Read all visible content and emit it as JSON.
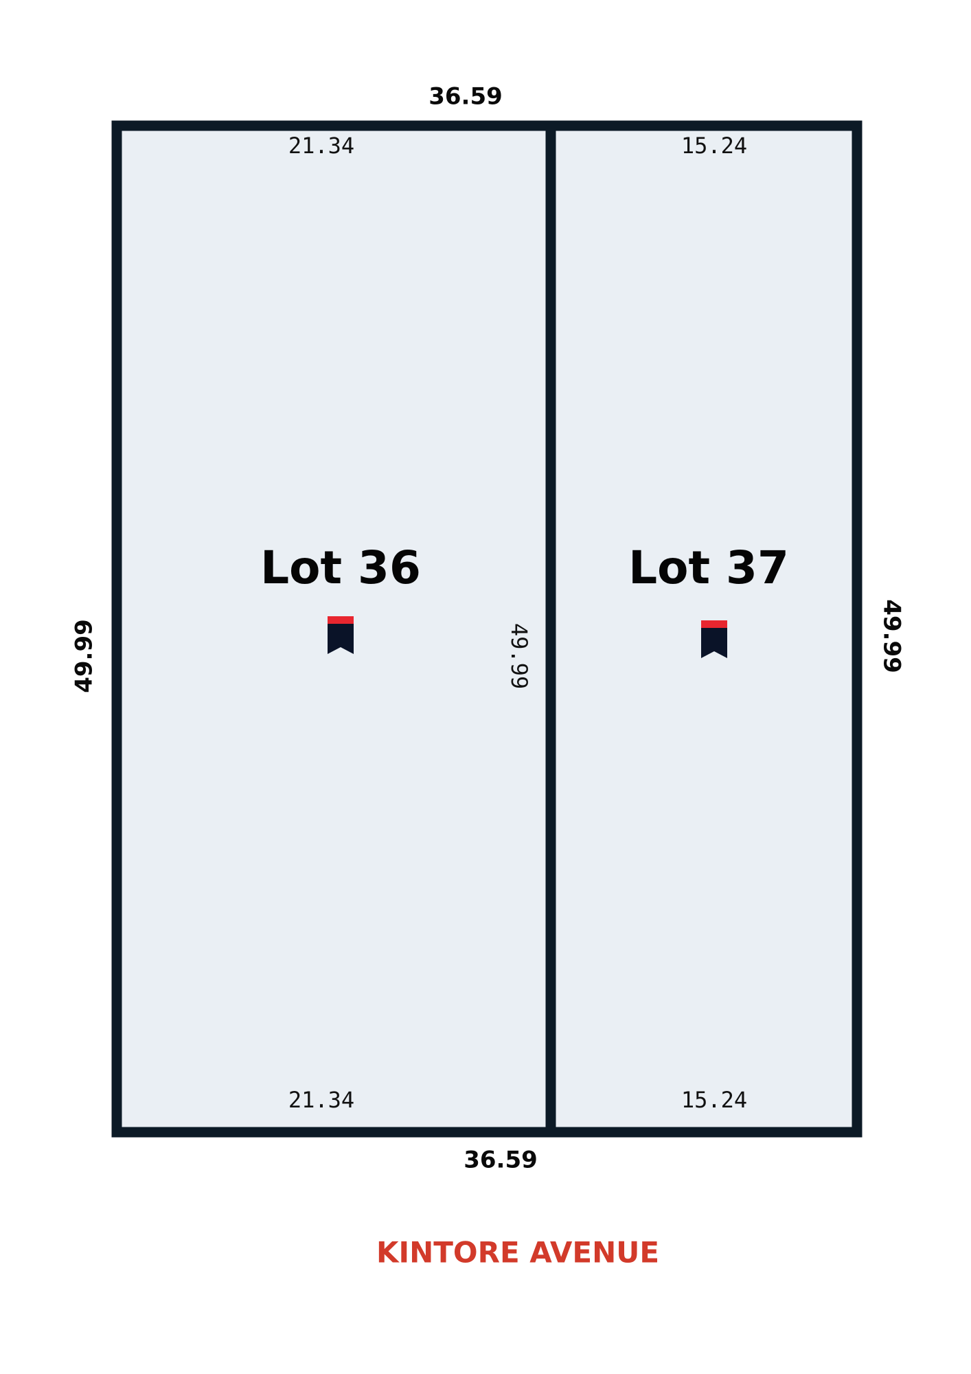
{
  "dimensions": {
    "top": "36.59",
    "bottom": "36.59",
    "left": "49.99",
    "middle": "49.99",
    "right": "49.99"
  },
  "lots": [
    {
      "name": "Lot 36",
      "top": "21.34",
      "bottom": "21.34"
    },
    {
      "name": "Lot 37",
      "top": "15.24",
      "bottom": "15.24"
    }
  ],
  "street": "KINTORE AVENUE"
}
